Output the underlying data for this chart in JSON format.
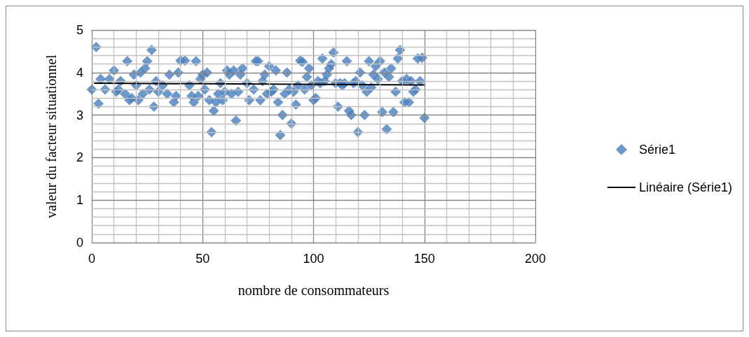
{
  "chart_data": {
    "type": "scatter",
    "xlabel": "nombre de consommateurs",
    "ylabel": "valeur du facteur situationnel",
    "marker": "diamond",
    "legend": "right",
    "grid": true,
    "xlim": [
      0,
      200
    ],
    "xticks": [
      0,
      {
        "value": 10,
        "label": null
      },
      {
        "value": 20,
        "label": null
      },
      {
        "value": 30,
        "label": null
      },
      {
        "value": 40,
        "label": null
      },
      50,
      {
        "value": 60,
        "label": null
      },
      {
        "value": 70,
        "label": null
      },
      {
        "value": 80,
        "label": null
      },
      {
        "value": 90,
        "label": null
      },
      100,
      {
        "value": 110,
        "label": null
      },
      {
        "value": 120,
        "label": null
      },
      {
        "value": 130,
        "label": null
      },
      {
        "value": 140,
        "label": null
      },
      150,
      {
        "value": 160,
        "label": null
      },
      {
        "value": 170,
        "label": null
      },
      {
        "value": 180,
        "label": null
      },
      {
        "value": 190,
        "label": null
      },
      200
    ],
    "ylim": [
      0,
      5
    ],
    "yticks": [
      0,
      {
        "value": 0.2,
        "label": null
      },
      {
        "value": 0.4,
        "label": null
      },
      {
        "value": 0.6,
        "label": null
      },
      {
        "value": 0.8,
        "label": null
      },
      1,
      {
        "value": 1.2,
        "label": null
      },
      {
        "value": 1.4,
        "label": null
      },
      {
        "value": 1.6,
        "label": null
      },
      {
        "value": 1.8,
        "label": null
      },
      2,
      {
        "value": 2.2,
        "label": null
      },
      {
        "value": 2.4,
        "label": null
      },
      {
        "value": 2.6,
        "label": null
      },
      {
        "value": 2.8,
        "label": null
      },
      3,
      {
        "value": 3.2,
        "label": null
      },
      {
        "value": 3.4,
        "label": null
      },
      {
        "value": 3.6,
        "label": null
      },
      {
        "value": 3.8,
        "label": null
      },
      4,
      {
        "value": 4.2,
        "label": null
      },
      {
        "value": 4.4,
        "label": null
      },
      {
        "value": 4.6,
        "label": null
      },
      {
        "value": 4.8,
        "label": null
      },
      5
    ],
    "series": [
      {
        "name": "Série1",
        "color": "#4a7ebb",
        "x": [
          0,
          2,
          3,
          4,
          6,
          8,
          10,
          11,
          12,
          13,
          15,
          16,
          17,
          18,
          19,
          20,
          21,
          22,
          23,
          24,
          25,
          26,
          27,
          28,
          29,
          30,
          32,
          34,
          35,
          37,
          38,
          39,
          40,
          42,
          44,
          45,
          46,
          47,
          48,
          49,
          50,
          51,
          52,
          53,
          54,
          55,
          56,
          57,
          58,
          59,
          60,
          61,
          62,
          63,
          64,
          65,
          66,
          67,
          68,
          70,
          71,
          73,
          74,
          75,
          76,
          77,
          78,
          79,
          80,
          81,
          82,
          83,
          84,
          85,
          86,
          87,
          88,
          89,
          90,
          91,
          92,
          93,
          94,
          95,
          96,
          97,
          98,
          99,
          100,
          101,
          102,
          103,
          104,
          105,
          106,
          107,
          108,
          109,
          110,
          111,
          112,
          113,
          114,
          115,
          116,
          117,
          118,
          119,
          120,
          121,
          122,
          123,
          124,
          125,
          126,
          127,
          128,
          129,
          130,
          131,
          132,
          133,
          134,
          135,
          136,
          137,
          138,
          139,
          140,
          141,
          142,
          143,
          144,
          145,
          146,
          147,
          148,
          149,
          150
        ],
        "values": [
          3.6,
          4.6,
          3.27,
          3.85,
          3.6,
          3.85,
          4.05,
          3.55,
          3.6,
          3.8,
          3.5,
          4.27,
          3.35,
          3.4,
          3.95,
          3.7,
          3.35,
          4.0,
          3.5,
          4.1,
          4.27,
          3.6,
          4.53,
          3.2,
          3.8,
          3.55,
          3.7,
          3.5,
          3.95,
          3.3,
          3.45,
          4.0,
          4.28,
          4.28,
          3.7,
          3.45,
          3.3,
          4.27,
          3.45,
          3.85,
          3.95,
          3.6,
          4.0,
          3.35,
          2.6,
          3.1,
          3.3,
          3.5,
          3.75,
          3.35,
          3.55,
          4.05,
          3.95,
          3.5,
          4.05,
          2.87,
          3.55,
          3.95,
          4.1,
          3.75,
          3.35,
          3.6,
          4.27,
          4.27,
          3.35,
          3.8,
          3.95,
          3.5,
          4.15,
          3.55,
          3.6,
          4.05,
          3.3,
          2.53,
          3.0,
          3.5,
          4.0,
          3.6,
          2.8,
          3.55,
          3.25,
          3.7,
          4.28,
          4.25,
          3.6,
          3.9,
          4.1,
          3.7,
          3.35,
          3.4,
          3.8,
          3.75,
          4.33,
          3.8,
          3.95,
          4.1,
          4.2,
          4.47,
          3.75,
          3.2,
          3.75,
          3.7,
          3.75,
          4.27,
          3.1,
          3.0,
          3.75,
          3.8,
          2.6,
          4.0,
          3.7,
          3.0,
          3.55,
          4.27,
          3.65,
          3.95,
          4.15,
          3.85,
          4.27,
          3.07,
          4.0,
          2.67,
          3.9,
          4.1,
          3.07,
          3.55,
          4.33,
          4.53,
          3.8,
          3.3,
          3.85,
          3.3,
          3.8,
          3.55,
          3.6,
          4.33,
          3.8,
          4.35,
          2.93
        ]
      },
      {
        "name": "Linéaire (Série1)",
        "type": "line",
        "color": "#000000",
        "marker": "none",
        "line_style": "solid",
        "x": [
          1,
          150
        ],
        "values": [
          3.75,
          3.71
        ]
      }
    ]
  }
}
